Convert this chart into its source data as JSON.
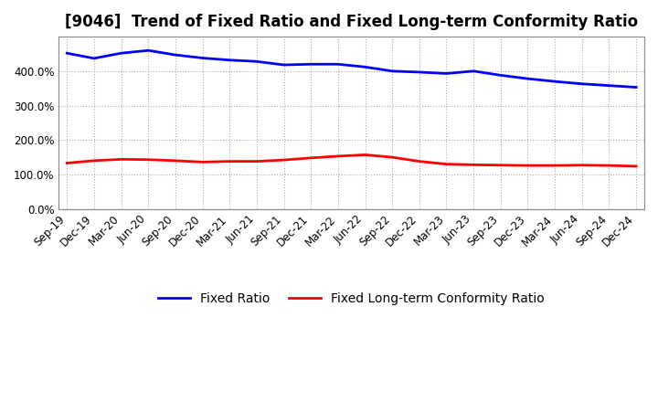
{
  "title": "[9046]  Trend of Fixed Ratio and Fixed Long-term Conformity Ratio",
  "x_labels": [
    "Sep-19",
    "Dec-19",
    "Mar-20",
    "Jun-20",
    "Sep-20",
    "Dec-20",
    "Mar-21",
    "Jun-21",
    "Sep-21",
    "Dec-21",
    "Mar-22",
    "Jun-22",
    "Sep-22",
    "Dec-22",
    "Mar-23",
    "Jun-23",
    "Sep-23",
    "Dec-23",
    "Mar-24",
    "Jun-24",
    "Sep-24",
    "Dec-24"
  ],
  "fixed_ratio": [
    452,
    437,
    452,
    460,
    447,
    438,
    432,
    428,
    418,
    420,
    420,
    412,
    400,
    397,
    393,
    400,
    388,
    378,
    370,
    363,
    358,
    353
  ],
  "fixed_lt_ratio": [
    133,
    140,
    144,
    143,
    140,
    136,
    138,
    138,
    142,
    148,
    153,
    157,
    150,
    138,
    130,
    128,
    127,
    126,
    126,
    127,
    126,
    124
  ],
  "ylim": [
    0,
    500
  ],
  "yticks": [
    0,
    100,
    200,
    300,
    400
  ],
  "blue_color": "#0000FF",
  "red_color": "#FF0000",
  "grid_color": "#AAAAAA",
  "bg_color": "#FFFFFF",
  "legend_fixed_ratio": "Fixed Ratio",
  "legend_fixed_lt_ratio": "Fixed Long-term Conformity Ratio",
  "title_fontsize": 12,
  "axis_fontsize": 8.5,
  "legend_fontsize": 10
}
